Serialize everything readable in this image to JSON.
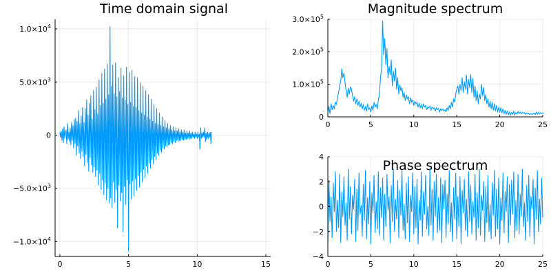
{
  "accent_color": "#009AFA",
  "chart_data": [
    {
      "id": "time",
      "type": "line",
      "title": "Time domain signal",
      "xlabel": "",
      "ylabel": "",
      "xlim": [
        -0.35,
        15.35
      ],
      "ylim": [
        -11400,
        10900
      ],
      "grid": true,
      "legend": "none",
      "x_ticks": [
        {
          "value": 0,
          "label": "0"
        },
        {
          "value": 5,
          "label": "5"
        },
        {
          "value": 10,
          "label": "10"
        },
        {
          "value": 15,
          "label": "15"
        }
      ],
      "y_ticks": [
        {
          "value": -10000,
          "mant": "−1.0×10",
          "exp": "4"
        },
        {
          "value": -5000,
          "mant": "−5.0×10",
          "exp": "3"
        },
        {
          "value": 0,
          "mant": "0",
          "exp": ""
        },
        {
          "value": 5000,
          "mant": "5.0×10",
          "exp": "3"
        },
        {
          "value": 10000,
          "mant": "1.0×10",
          "exp": "4"
        }
      ],
      "series": [
        {
          "x_start": 0,
          "x_step": 0.05,
          "y": [
            300,
            -200,
            400,
            -500,
            600,
            -700,
            800,
            -300,
            200,
            500,
            -800,
            1100,
            -400,
            300,
            -600,
            700,
            -900,
            1200,
            -500,
            900,
            -1200,
            1500,
            -800,
            1600,
            -1900,
            1300,
            -1000,
            2300,
            -1700,
            1100,
            -2200,
            1800,
            -1500,
            2600,
            -2000,
            1200,
            -2900,
            2500,
            -1800,
            3300,
            -2600,
            1900,
            -3400,
            3000,
            -2100,
            3700,
            -2800,
            1500,
            -3500,
            4200,
            -3000,
            2400,
            -3900,
            4500,
            -3300,
            2000,
            -4700,
            5200,
            -3600,
            2800,
            -5100,
            5800,
            -4200,
            3000,
            -5600,
            6200,
            -4500,
            3400,
            -6100,
            6700,
            -5000,
            3800,
            -6400,
            10200,
            -5900,
            4600,
            -6800,
            6600,
            -4400,
            3900,
            -6300,
            6800,
            -5100,
            3600,
            -8700,
            5400,
            -4700,
            4100,
            -6200,
            6300,
            -5400,
            3500,
            -9100,
            5600,
            -4800,
            3300,
            -6500,
            6400,
            -4200,
            2900,
            -10900,
            5900,
            -4600,
            3100,
            -6000,
            6100,
            -4300,
            2700,
            -5700,
            5500,
            -4100,
            2600,
            -5200,
            5400,
            -3800,
            2300,
            -4900,
            4900,
            -3500,
            2100,
            -4400,
            4600,
            -3200,
            1900,
            -4000,
            4200,
            -2900,
            1700,
            -3600,
            3800,
            -2600,
            1500,
            -3100,
            3400,
            -2300,
            1300,
            -2700,
            2900,
            -2000,
            1100,
            -2300,
            2500,
            -1700,
            1000,
            -1900,
            2100,
            -1400,
            900,
            -1600,
            1700,
            -1200,
            800,
            -1300,
            1400,
            -1000,
            700,
            -1100,
            1100,
            -900,
            600,
            -900,
            900,
            -700,
            500,
            -800,
            800,
            -600,
            400,
            -700,
            700,
            -500,
            400,
            -600,
            600,
            -500,
            300,
            -500,
            500,
            -400,
            300,
            -500,
            500,
            -400,
            200,
            -400,
            400,
            -300,
            200,
            -400,
            400,
            -300,
            200,
            -300,
            300,
            -200,
            100,
            -300,
            300,
            -200,
            100,
            -300,
            300,
            -200,
            100,
            -1300,
            700,
            -300,
            200,
            -200,
            300,
            -200,
            700,
            -600,
            200,
            -400,
            300,
            -300,
            200,
            -200,
            300,
            -800,
            300
          ]
        }
      ]
    },
    {
      "id": "magnitude",
      "type": "line",
      "title": "Magnitude spectrum",
      "xlabel": "",
      "ylabel": "",
      "xlim": [
        0,
        25
      ],
      "ylim": [
        0,
        300000
      ],
      "grid": true,
      "legend": "none",
      "x_ticks": [
        {
          "value": 0,
          "label": "0"
        },
        {
          "value": 5,
          "label": "5"
        },
        {
          "value": 10,
          "label": "10"
        },
        {
          "value": 15,
          "label": "15"
        },
        {
          "value": 20,
          "label": "20"
        },
        {
          "value": 25,
          "label": "25"
        }
      ],
      "y_ticks": [
        {
          "value": 0,
          "mant": "0",
          "exp": ""
        },
        {
          "value": 100000,
          "mant": "1.0×10",
          "exp": "5"
        },
        {
          "value": 200000,
          "mant": "2.0×10",
          "exp": "5"
        },
        {
          "value": 300000,
          "mant": "3.0×10",
          "exp": "5"
        }
      ],
      "series": [
        {
          "x_start": 0,
          "x_step": 0.125,
          "y": [
            15000,
            32000,
            10000,
            40000,
            22000,
            35000,
            25000,
            45000,
            38000,
            60000,
            75000,
            95000,
            110000,
            148000,
            120000,
            135000,
            105000,
            80000,
            60000,
            88000,
            70000,
            92000,
            85000,
            65000,
            48000,
            62000,
            40000,
            55000,
            35000,
            48000,
            30000,
            42000,
            25000,
            38000,
            20000,
            32000,
            18000,
            40000,
            22000,
            28000,
            15000,
            34000,
            20000,
            45000,
            30000,
            38000,
            25000,
            52000,
            70000,
            120000,
            148000,
            295000,
            190000,
            240000,
            160000,
            210000,
            120000,
            155000,
            130000,
            175000,
            95000,
            140000,
            110000,
            150000,
            85000,
            120000,
            70000,
            98000,
            80000,
            90000,
            60000,
            75000,
            50000,
            68000,
            55000,
            62000,
            40000,
            58000,
            45000,
            52000,
            35000,
            48000,
            40000,
            45000,
            30000,
            42000,
            28000,
            38000,
            25000,
            40000,
            30000,
            35000,
            22000,
            30000,
            28000,
            33000,
            20000,
            30000,
            25000,
            28000,
            18000,
            28000,
            22000,
            26000,
            15000,
            25000,
            20000,
            24000,
            18000,
            22000,
            15000,
            28000,
            20000,
            35000,
            25000,
            45000,
            30000,
            55000,
            45000,
            70000,
            85000,
            95000,
            70000,
            100000,
            80000,
            120000,
            75000,
            108000,
            85000,
            128000,
            70000,
            115000,
            90000,
            130000,
            75000,
            118000,
            60000,
            95000,
            50000,
            80000,
            40000,
            70000,
            55000,
            100000,
            65000,
            90000,
            50000,
            68000,
            40000,
            55000,
            30000,
            48000,
            25000,
            45000,
            20000,
            40000,
            18000,
            35000,
            15000,
            30000,
            14000,
            28000,
            12000,
            24000,
            10000,
            20000,
            8000,
            18000,
            6000,
            15000,
            5000,
            14000,
            8000,
            17000,
            6000,
            13000,
            9000,
            16000,
            10000,
            15000,
            9000,
            14000,
            11000,
            13000,
            8000,
            12000,
            9000,
            11000,
            7000,
            10000,
            8000,
            9000,
            12000,
            7000,
            15000,
            8000,
            14000,
            9000,
            13000,
            10000,
            11000,
            12000
          ]
        }
      ]
    },
    {
      "id": "phase",
      "type": "line",
      "title": "Phase spectrum",
      "xlabel": "",
      "ylabel": "",
      "xlim": [
        0,
        25
      ],
      "ylim": [
        -4,
        4
      ],
      "grid": true,
      "legend": "none",
      "x_ticks": [
        {
          "value": 0,
          "label": "0"
        },
        {
          "value": 5,
          "label": "5"
        },
        {
          "value": 10,
          "label": "10"
        },
        {
          "value": 15,
          "label": "15"
        },
        {
          "value": 20,
          "label": "20"
        },
        {
          "value": 25,
          "label": "25"
        }
      ],
      "y_ticks": [
        {
          "value": -4,
          "mant": "−4",
          "exp": ""
        },
        {
          "value": -2,
          "mant": "−2",
          "exp": ""
        },
        {
          "value": 0,
          "mant": "0",
          "exp": ""
        },
        {
          "value": 2,
          "mant": "2",
          "exp": ""
        },
        {
          "value": 4,
          "mant": "4",
          "exp": ""
        }
      ],
      "series": [
        {
          "x_start": 0,
          "x_step": 0.125,
          "y": [
            -3.0,
            2.1,
            -1.2,
            0.8,
            -2.5,
            1.9,
            -0.4,
            2.8,
            -2.0,
            0.5,
            -1.7,
            2.6,
            -2.9,
            1.2,
            -0.8,
            2.4,
            -1.5,
            0.3,
            -2.7,
            3.0,
            -1.0,
            1.6,
            -2.2,
            0.9,
            -0.2,
            2.2,
            -2.8,
            1.4,
            -1.9,
            2.7,
            -0.6,
            0.1,
            -2.4,
            1.8,
            -1.1,
            2.9,
            -2.6,
            0.7,
            -1.4,
            2.0,
            -3.0,
            1.1,
            -0.5,
            2.5,
            -2.1,
            0.4,
            -1.8,
            2.8,
            -2.3,
            1.5,
            -0.9,
            2.3,
            -2.7,
            1.0,
            -1.6,
            2.6,
            -0.3,
            0.8,
            -2.9,
            1.7,
            -1.2,
            3.0,
            -2.0,
            0.6,
            -1.0,
            2.1,
            -2.5,
            1.3,
            -0.7,
            2.9,
            -1.9,
            0.2,
            -2.6,
            1.9,
            -1.3,
            2.4,
            -2.8,
            0.9,
            -0.4,
            2.7,
            -2.2,
            1.6,
            -1.7,
            2.2,
            -3.0,
            0.5,
            -1.1,
            2.8,
            -2.4,
            1.2,
            -0.6,
            2.5,
            -1.8,
            0.0,
            -2.3,
            3.0,
            -1.5,
            1.4,
            -2.7,
            2.0,
            -0.8,
            2.6,
            -2.1,
            0.7,
            -1.9,
            2.3,
            -2.9,
            1.8,
            -0.2,
            2.1,
            -2.5,
            1.0,
            -1.4,
            2.9,
            -2.0,
            0.3,
            -2.8,
            1.5,
            -1.0,
            2.7,
            -2.6,
            0.8,
            -1.6,
            2.4,
            -3.0,
            1.3,
            -0.5,
            2.2,
            -1.9,
            0.6,
            -2.4,
            2.8,
            -1.2,
            1.7,
            -2.2,
            0.4,
            -0.9,
            2.6,
            -2.7,
            1.1,
            -1.7,
            3.0,
            -2.3,
            0.9,
            -0.3,
            2.0,
            -2.8,
            1.6,
            -1.3,
            2.5,
            -2.0,
            0.2,
            -2.6,
            1.9,
            -0.7,
            2.9,
            -2.4,
            1.4,
            -1.8,
            2.3,
            -3.0,
            0.7,
            -1.1,
            2.7,
            -2.1,
            1.2,
            -0.4,
            2.4,
            -2.9,
            1.8,
            -1.5,
            2.1,
            -0.6,
            2.8,
            -2.5,
            0.5,
            -1.9,
            2.6,
            -2.2,
            1.0,
            -0.8,
            3.0,
            -1.6,
            0.3,
            -2.7,
            1.7,
            -1.2,
            2.5,
            -2.4,
            0.8,
            -0.2,
            2.2,
            -3.0,
            1.5,
            -1.0,
            2.9,
            -2.0,
            0.6,
            -1.4,
            2.3,
            -0.9
          ]
        }
      ]
    }
  ]
}
